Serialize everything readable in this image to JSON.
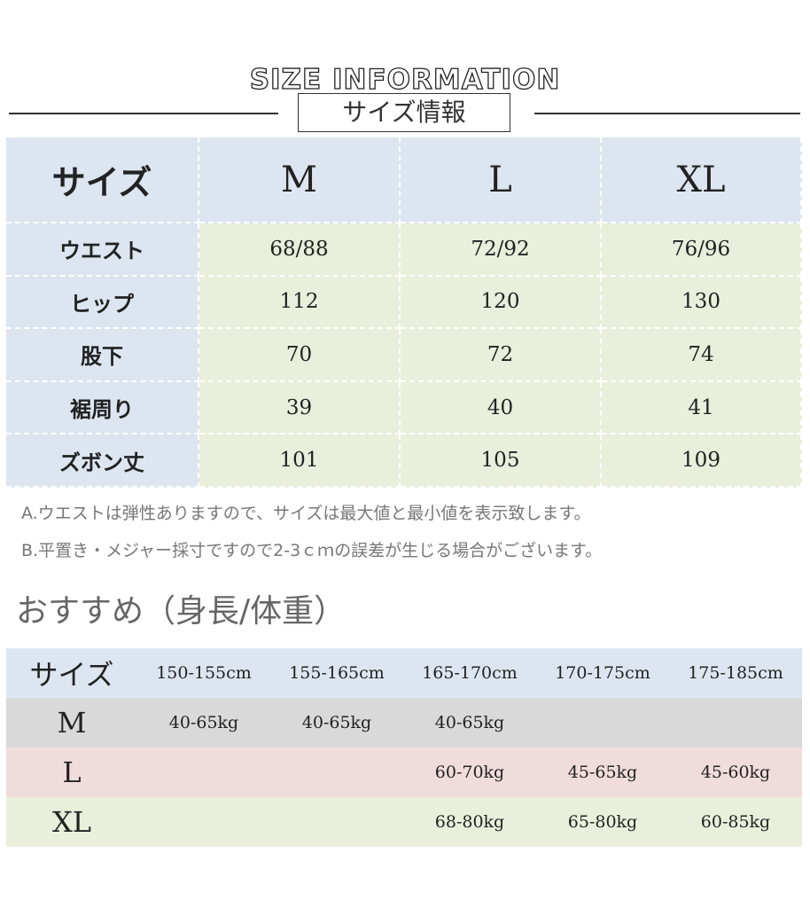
{
  "header": {
    "english_title": "SIZE INFORMATION",
    "japanese_title": "サイズ情報"
  },
  "size_table": {
    "columns": [
      "サイズ",
      "M",
      "L",
      "XL"
    ],
    "rows": [
      {
        "label": "ウエスト",
        "values": [
          "68/88",
          "72/92",
          "76/96"
        ]
      },
      {
        "label": "ヒップ",
        "values": [
          "112",
          "120",
          "130"
        ]
      },
      {
        "label": "股下",
        "values": [
          "70",
          "72",
          "74"
        ]
      },
      {
        "label": "裾周り",
        "values": [
          "39",
          "40",
          "41"
        ]
      },
      {
        "label": "ズボン丈",
        "values": [
          "101",
          "105",
          "109"
        ]
      }
    ]
  },
  "notes": {
    "a": "A.ウエストは弾性ありますので、サイズは最大値と最小値を表示致します。",
    "b": "B.平置き・メジャー採寸ですので2-3ｃｍの誤差が生じる場合がございます。"
  },
  "recommend": {
    "title": "おすすめ（身長/体重）",
    "columns": [
      "サイズ",
      "150-155cm",
      "155-165cm",
      "165-170cm",
      "170-175cm",
      "175-185cm"
    ],
    "rows": [
      {
        "label": "M",
        "values": [
          "40-65kg",
          "40-65kg",
          "40-65kg",
          "",
          ""
        ]
      },
      {
        "label": "L",
        "values": [
          "",
          "",
          "60-70kg",
          "45-65kg",
          "45-60kg"
        ]
      },
      {
        "label": "XL",
        "values": [
          "",
          "",
          "68-80kg",
          "65-80kg",
          "60-85kg"
        ]
      }
    ]
  },
  "colors": {
    "label_blue": "#dde6f0",
    "value_green": "#eaefdc",
    "row_gray": "#d9d9d9",
    "row_pink": "#f1dcdc"
  }
}
